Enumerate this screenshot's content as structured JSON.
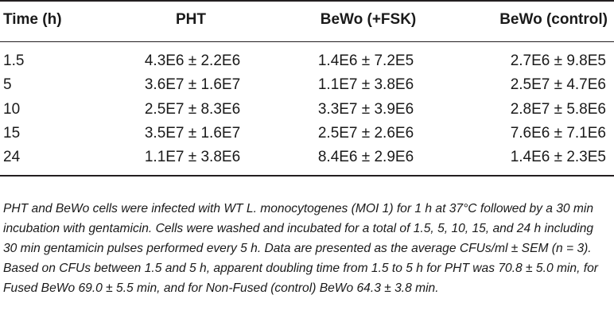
{
  "table": {
    "headers": [
      "Time (h)",
      "PHT",
      "BeWo (+FSK)",
      "BeWo (control)"
    ],
    "rows": [
      [
        "1.5",
        "4.3E6 ± 2.2E6",
        "1.4E6 ± 7.2E5",
        "2.7E6 ± 9.8E5"
      ],
      [
        "5",
        "3.6E7 ± 1.6E7",
        "1.1E7 ± 3.8E6",
        "2.5E7 ± 4.7E6"
      ],
      [
        "10",
        "2.5E7 ± 8.3E6",
        "3.3E7 ± 3.9E6",
        "2.8E7 ± 5.8E6"
      ],
      [
        "15",
        "3.5E7 ± 1.6E7",
        "2.5E7 ± 2.6E6",
        "7.6E6 ± 7.1E6"
      ],
      [
        "24",
        "1.1E7 ± 3.8E6",
        "8.4E6 ± 2.9E6",
        "1.4E6 ± 2.3E5"
      ]
    ]
  },
  "footnote": "PHT and BeWo cells were infected with WT L. monocytogenes (MOI 1) for 1 h at 37°C followed by a 30 min incubation with gentamicin. Cells were washed and incubated for a total of 1.5, 5, 10, 15, and 24 h including 30 min gentamicin pulses performed every 5 h. Data are presented as the average CFUs/ml ± SEM (n = 3). Based on CFUs between 1.5 and 5 h, apparent doubling time from 1.5 to 5 h for PHT was 70.8 ± 5.0 min, for Fused BeWo 69.0 ± 5.5 min, and for Non-Fused (control) BeWo 64.3 ± 3.8 min."
}
